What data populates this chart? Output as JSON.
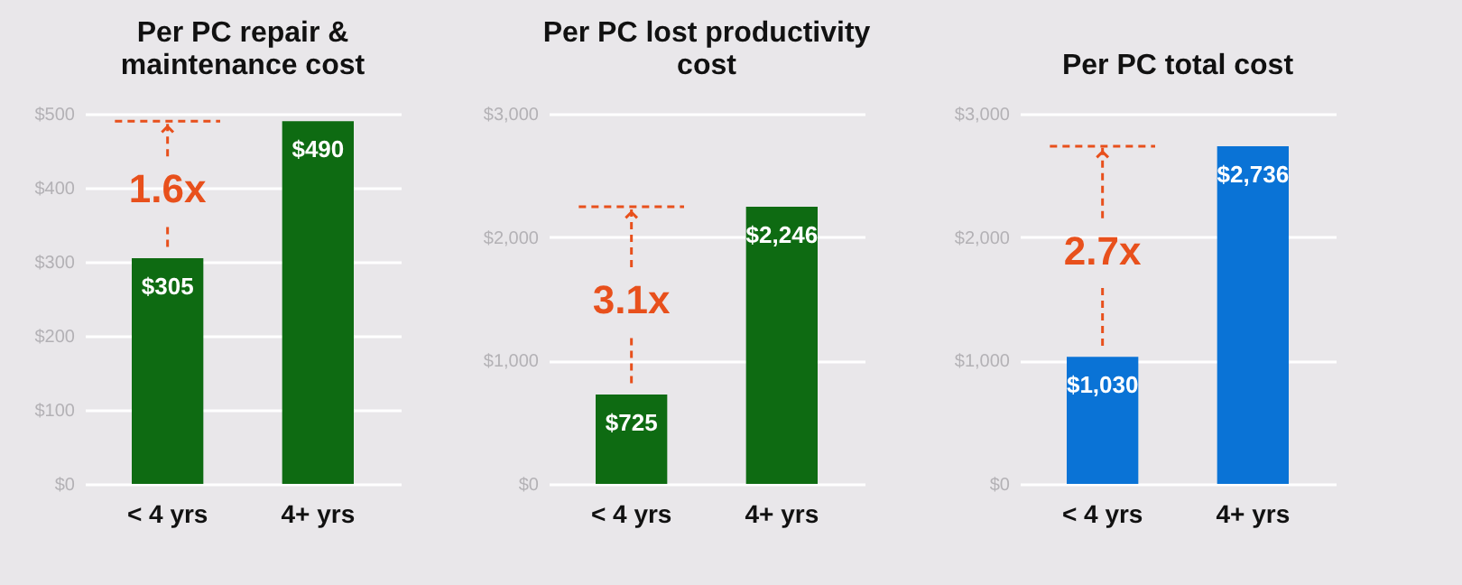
{
  "chart_data": [
    {
      "type": "bar",
      "title": "Per PC repair & maintenance cost",
      "categories": [
        "< 4 yrs",
        "4+ yrs"
      ],
      "values": [
        305,
        490
      ],
      "colors": [
        "#0e6b12",
        "#0e6b12"
      ],
      "value_labels": [
        "$305",
        "$490"
      ],
      "ylim": [
        0,
        500
      ],
      "yticks": [
        {
          "value": 0,
          "label": "$0"
        },
        {
          "value": 100,
          "label": "$100"
        },
        {
          "value": 200,
          "label": "$200"
        },
        {
          "value": 300,
          "label": "$300"
        },
        {
          "value": 400,
          "label": "$400"
        },
        {
          "value": 500,
          "label": "$500"
        }
      ],
      "grid": "y",
      "ref_lines": [
        {
          "axis": "y",
          "value": 490,
          "color": "#e8501c",
          "line_style": "dashed"
        }
      ],
      "annotations": [
        {
          "text": "1.6x",
          "x": "< 4 yrs",
          "y": 490
        }
      ]
    },
    {
      "type": "bar",
      "title": "Per PC lost productivity cost",
      "categories": [
        "< 4 yrs",
        "4+ yrs"
      ],
      "values": [
        725,
        2246
      ],
      "colors": [
        "#0e6b12",
        "#0e6b12"
      ],
      "value_labels": [
        "$725",
        "$2,246"
      ],
      "ylim": [
        0,
        3000
      ],
      "yticks": [
        {
          "value": 0,
          "label": "$0"
        },
        {
          "value": 1000,
          "label": "$1,000"
        },
        {
          "value": 2000,
          "label": "$2,000"
        },
        {
          "value": 3000,
          "label": "$3,000"
        }
      ],
      "grid": "y",
      "ref_lines": [
        {
          "axis": "y",
          "value": 2246,
          "color": "#e8501c",
          "line_style": "dashed"
        }
      ],
      "annotations": [
        {
          "text": "3.1x",
          "x": "< 4 yrs",
          "y": 2246
        }
      ]
    },
    {
      "type": "bar",
      "title": "Per PC total cost",
      "categories": [
        "< 4 yrs",
        "4+ yrs"
      ],
      "values": [
        1030,
        2736
      ],
      "colors": [
        "#0a73d6",
        "#0a73d6"
      ],
      "value_labels": [
        "$1,030",
        "$2,736"
      ],
      "ylim": [
        0,
        3000
      ],
      "yticks": [
        {
          "value": 0,
          "label": "$0"
        },
        {
          "value": 1000,
          "label": "$1,000"
        },
        {
          "value": 2000,
          "label": "$2,000"
        },
        {
          "value": 3000,
          "label": "$3,000"
        }
      ],
      "grid": "y",
      "ref_lines": [
        {
          "axis": "y",
          "value": 2736,
          "color": "#e8501c",
          "line_style": "dashed"
        }
      ],
      "annotations": [
        {
          "text": "2.7x",
          "x": "< 4 yrs",
          "y": 2736
        }
      ]
    }
  ]
}
